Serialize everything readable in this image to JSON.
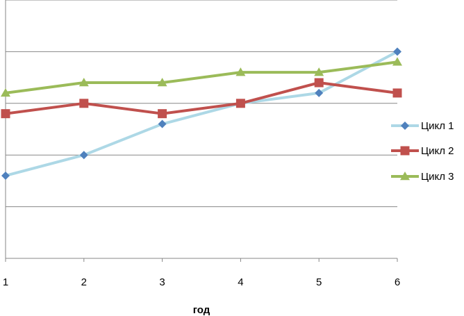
{
  "chart_data": {
    "type": "line",
    "xlabel": "год",
    "ylabel": "",
    "title": "",
    "x": [
      "1",
      "2",
      "3",
      "4",
      "5",
      "6"
    ],
    "ylim": [
      0,
      5
    ],
    "y_gridlines": [
      1,
      2,
      3,
      4,
      5
    ],
    "grid": "horizontal",
    "legend": "right",
    "series": [
      {
        "name": "Цикл 1",
        "values": [
          1.6,
          2.0,
          2.6,
          3.0,
          3.2,
          4.0
        ],
        "color": "#add8e6",
        "marker_color": "#4f81bd",
        "marker": "diamond"
      },
      {
        "name": "Цикл 2",
        "values": [
          2.8,
          3.0,
          2.8,
          3.0,
          3.4,
          3.2
        ],
        "color": "#c0504d",
        "marker_color": "#c0504d",
        "marker": "square"
      },
      {
        "name": "Цикл 3",
        "values": [
          3.2,
          3.4,
          3.4,
          3.6,
          3.6,
          3.8
        ],
        "color": "#9bbb59",
        "marker_color": "#9bbb59",
        "marker": "triangle"
      }
    ]
  }
}
